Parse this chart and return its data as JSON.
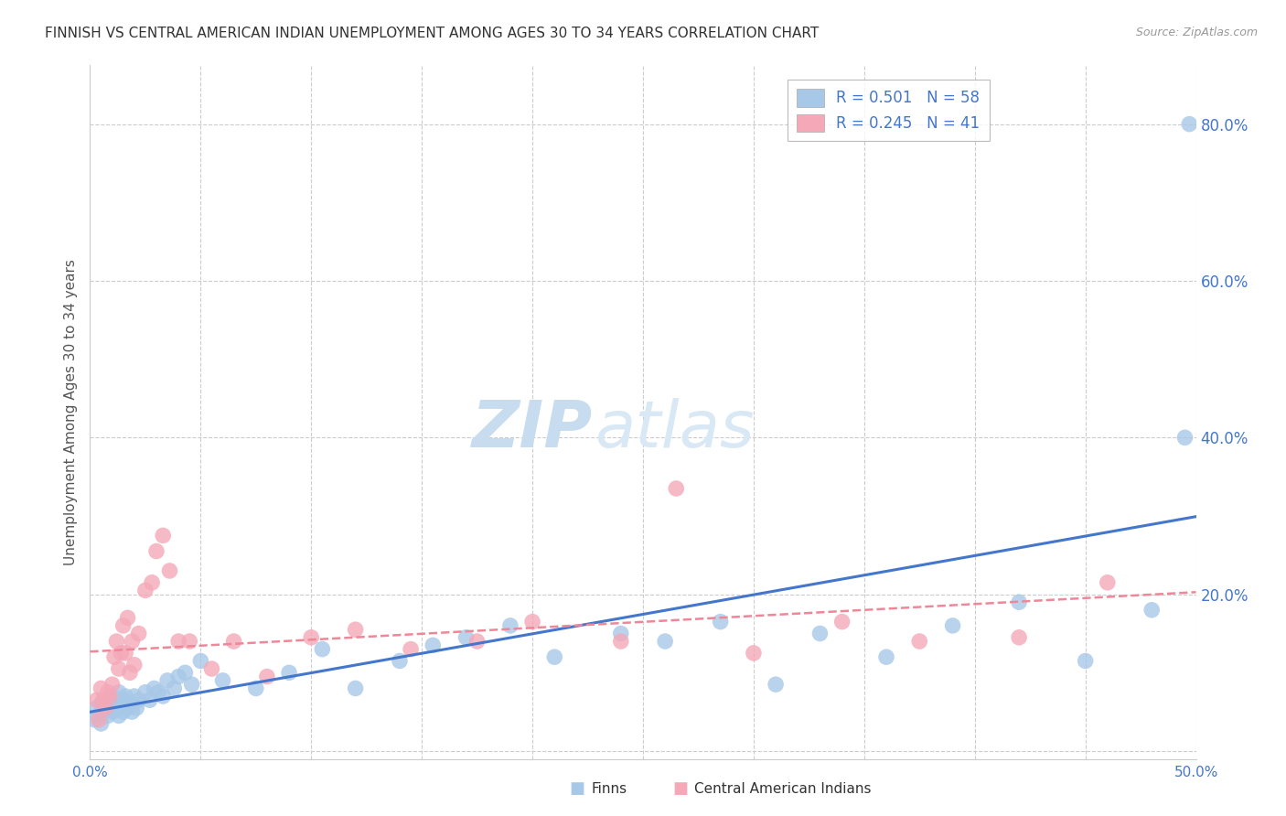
{
  "title": "FINNISH VS CENTRAL AMERICAN INDIAN UNEMPLOYMENT AMONG AGES 30 TO 34 YEARS CORRELATION CHART",
  "source": "Source: ZipAtlas.com",
  "ylabel": "Unemployment Among Ages 30 to 34 years",
  "legend_label1": "Finns",
  "legend_label2": "Central American Indians",
  "R1": 0.501,
  "N1": 58,
  "R2": 0.245,
  "N2": 41,
  "color_blue": "#A8C8E8",
  "color_pink": "#F4A8B8",
  "color_blue_dark": "#4477CC",
  "color_pink_dark": "#EE8899",
  "color_blue_text": "#4477CC",
  "xlim": [
    0.0,
    0.5
  ],
  "ylim": [
    -0.01,
    0.875
  ],
  "ytick_positions": [
    0.0,
    0.2,
    0.4,
    0.6,
    0.8
  ],
  "ytick_labels": [
    "",
    "20.0%",
    "40.0%",
    "60.0%",
    "80.0%"
  ],
  "blue_x": [
    0.002,
    0.003,
    0.004,
    0.005,
    0.005,
    0.006,
    0.007,
    0.008,
    0.009,
    0.01,
    0.01,
    0.011,
    0.012,
    0.013,
    0.013,
    0.014,
    0.015,
    0.015,
    0.016,
    0.017,
    0.018,
    0.019,
    0.02,
    0.021,
    0.022,
    0.025,
    0.027,
    0.029,
    0.031,
    0.033,
    0.035,
    0.038,
    0.04,
    0.043,
    0.046,
    0.05,
    0.06,
    0.075,
    0.09,
    0.105,
    0.12,
    0.14,
    0.155,
    0.17,
    0.19,
    0.21,
    0.24,
    0.26,
    0.285,
    0.31,
    0.33,
    0.36,
    0.39,
    0.42,
    0.45,
    0.48,
    0.495,
    0.497
  ],
  "blue_y": [
    0.04,
    0.055,
    0.045,
    0.06,
    0.035,
    0.05,
    0.055,
    0.045,
    0.06,
    0.07,
    0.05,
    0.065,
    0.055,
    0.075,
    0.045,
    0.06,
    0.065,
    0.05,
    0.07,
    0.055,
    0.06,
    0.05,
    0.07,
    0.055,
    0.065,
    0.075,
    0.065,
    0.08,
    0.075,
    0.07,
    0.09,
    0.08,
    0.095,
    0.1,
    0.085,
    0.115,
    0.09,
    0.08,
    0.1,
    0.13,
    0.08,
    0.115,
    0.135,
    0.145,
    0.16,
    0.12,
    0.15,
    0.14,
    0.165,
    0.085,
    0.15,
    0.12,
    0.16,
    0.19,
    0.115,
    0.18,
    0.4,
    0.8
  ],
  "pink_x": [
    0.003,
    0.004,
    0.005,
    0.006,
    0.007,
    0.008,
    0.009,
    0.01,
    0.011,
    0.012,
    0.013,
    0.014,
    0.015,
    0.016,
    0.017,
    0.018,
    0.019,
    0.02,
    0.022,
    0.025,
    0.028,
    0.03,
    0.033,
    0.036,
    0.04,
    0.045,
    0.055,
    0.065,
    0.08,
    0.1,
    0.12,
    0.145,
    0.175,
    0.2,
    0.24,
    0.265,
    0.3,
    0.34,
    0.375,
    0.42,
    0.46
  ],
  "pink_y": [
    0.065,
    0.04,
    0.08,
    0.065,
    0.055,
    0.075,
    0.07,
    0.085,
    0.12,
    0.14,
    0.105,
    0.125,
    0.16,
    0.125,
    0.17,
    0.1,
    0.14,
    0.11,
    0.15,
    0.205,
    0.215,
    0.255,
    0.275,
    0.23,
    0.14,
    0.14,
    0.105,
    0.14,
    0.095,
    0.145,
    0.155,
    0.13,
    0.14,
    0.165,
    0.14,
    0.335,
    0.125,
    0.165,
    0.14,
    0.145,
    0.215
  ],
  "watermark_zip": "ZIP",
  "watermark_atlas": "atlas",
  "bg_color": "#FFFFFF",
  "grid_color": "#CCCCCC",
  "spine_color": "#CCCCCC"
}
